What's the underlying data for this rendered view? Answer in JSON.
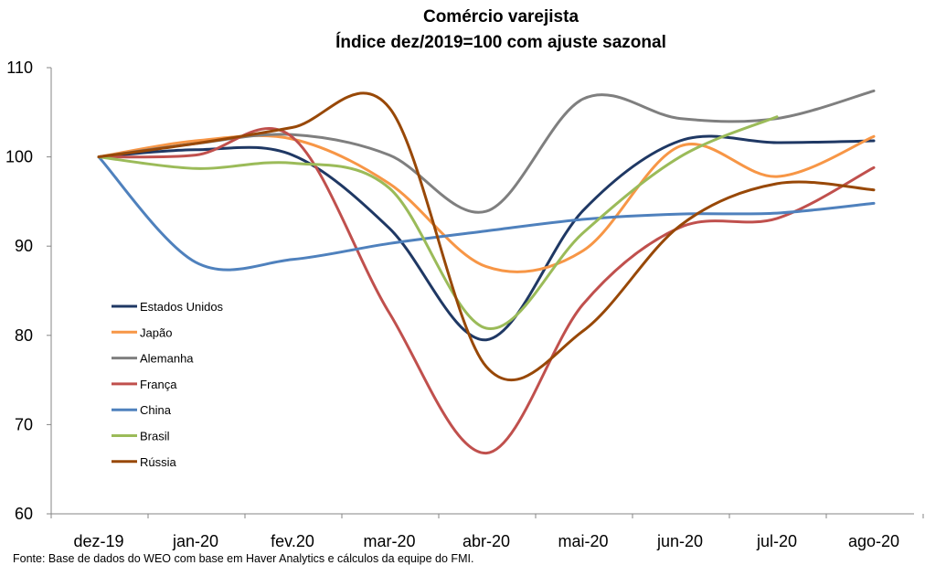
{
  "chart_data": {
    "type": "line",
    "title": "Comércio varejista",
    "subtitle": "Índice dez/2019=100 com ajuste sazonal",
    "xlabel": "",
    "ylabel": "",
    "categories": [
      "dez-19",
      "jan-20",
      "fev.20",
      "mar-20",
      "abr-20",
      "mai-20",
      "jun-20",
      "jul-20",
      "ago-20"
    ],
    "ylim": [
      60,
      110
    ],
    "yticks": [
      60,
      70,
      80,
      90,
      100,
      110
    ],
    "grid": false,
    "legend_position": "left",
    "series": [
      {
        "name": "Estados Unidos",
        "color": "#1f3864",
        "values": [
          100,
          100.8,
          100.2,
          92,
          79.5,
          94,
          101.8,
          101.6,
          101.8
        ]
      },
      {
        "name": "Japão",
        "color": "#f79646",
        "values": [
          100,
          101.8,
          102,
          97,
          87.7,
          89.5,
          101.2,
          97.8,
          102.3
        ]
      },
      {
        "name": "Alemanha",
        "color": "#7f7f7f",
        "values": [
          100,
          101.5,
          102.5,
          100.2,
          93.9,
          106.5,
          104.3,
          104.3,
          107.4
        ]
      },
      {
        "name": "França",
        "color": "#c0504d",
        "values": [
          100,
          100.2,
          102.2,
          82.5,
          66.8,
          83.5,
          92.1,
          93.1,
          98.8
        ]
      },
      {
        "name": "China",
        "color": "#4f81bd",
        "values": [
          100,
          88.2,
          88.5,
          90.3,
          91.7,
          93,
          93.6,
          93.7,
          94.8
        ]
      },
      {
        "name": "Brasil",
        "color": "#9bbb59",
        "values": [
          100,
          98.7,
          99.3,
          96.5,
          80.8,
          91.5,
          100,
          104.5,
          null
        ]
      },
      {
        "name": "Rússia",
        "color": "#984807",
        "values": [
          100,
          101.5,
          103.3,
          105.5,
          76.5,
          80.5,
          92.3,
          97,
          96.3
        ]
      }
    ],
    "source": "Fonte: Base de dados do WEO com base em Haver Analytics e cálculos da equipe do FMI."
  }
}
